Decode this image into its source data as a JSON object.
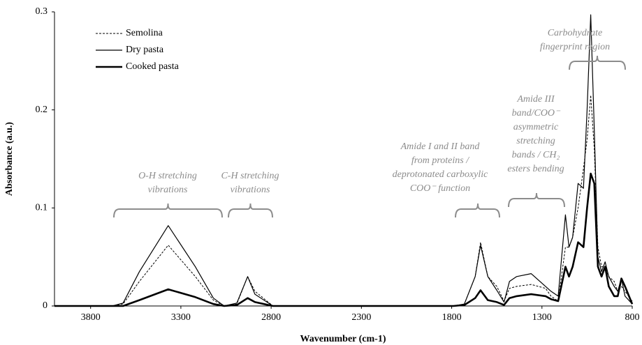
{
  "chart_data": {
    "type": "line",
    "x_label": "Wavenumber (cm-1)",
    "y_label": "Absorbance (a.u.)",
    "xlim": [
      4000,
      800
    ],
    "xticks": [
      3800,
      3300,
      2800,
      2300,
      1800,
      1300,
      800
    ],
    "ylim": [
      0,
      0.3
    ],
    "yticks": [
      0,
      0.1,
      0.2,
      0.3
    ],
    "grid": false,
    "legend": "upper-left",
    "x": [
      4000,
      3680,
      3620,
      3530,
      3370,
      3220,
      3120,
      3060,
      2990,
      2930,
      2890,
      2790,
      2440,
      1980,
      1790,
      1730,
      1670,
      1640,
      1600,
      1550,
      1510,
      1480,
      1440,
      1360,
      1280,
      1250,
      1210,
      1170,
      1150,
      1130,
      1100,
      1070,
      1050,
      1030,
      1010,
      990,
      970,
      950,
      930,
      900,
      880,
      860,
      840,
      800
    ],
    "series": [
      {
        "name": "Semolina",
        "color": "#000000",
        "style": "dashed",
        "width": 1,
        "values": [
          0,
          0,
          0.002,
          0.025,
          0.062,
          0.03,
          0.006,
          0,
          0.002,
          0.03,
          0.015,
          0,
          0,
          0,
          0,
          0.002,
          0.03,
          0.065,
          0.03,
          0.02,
          0.005,
          0.018,
          0.02,
          0.022,
          0.018,
          0.01,
          0.005,
          0.06,
          0.06,
          0.07,
          0.1,
          0.14,
          0.17,
          0.215,
          0.16,
          0.06,
          0.04,
          0.04,
          0.03,
          0.025,
          0.015,
          0.02,
          0.015,
          0.005
        ]
      },
      {
        "name": "Dry pasta",
        "color": "#000000",
        "style": "solid",
        "width": 1.2,
        "values": [
          0,
          0,
          0.003,
          0.035,
          0.082,
          0.04,
          0.008,
          0,
          0.003,
          0.03,
          0.012,
          0,
          0,
          0,
          0,
          0.002,
          0.03,
          0.062,
          0.03,
          0.016,
          0.004,
          0.025,
          0.03,
          0.033,
          0.02,
          0.015,
          0.01,
          0.093,
          0.06,
          0.07,
          0.125,
          0.12,
          0.2,
          0.297,
          0.18,
          0.05,
          0.035,
          0.045,
          0.03,
          0.02,
          0.015,
          0.028,
          0.01,
          0.002
        ]
      },
      {
        "name": "Cooked pasta",
        "color": "#000000",
        "style": "solid",
        "width": 2.6,
        "values": [
          0,
          0,
          0,
          0.006,
          0.017,
          0.009,
          0.002,
          0,
          0.001,
          0.008,
          0.004,
          0,
          0,
          0,
          0,
          0.001,
          0.008,
          0.016,
          0.006,
          0.004,
          0.001,
          0.008,
          0.01,
          0.012,
          0.01,
          0.007,
          0.005,
          0.04,
          0.03,
          0.04,
          0.065,
          0.06,
          0.1,
          0.135,
          0.125,
          0.04,
          0.03,
          0.04,
          0.02,
          0.01,
          0.01,
          0.028,
          0.02,
          0.002
        ]
      }
    ],
    "annotations": [
      [
        "O-H stretching",
        "vibrations"
      ],
      [
        "C-H stretching",
        "vibrations"
      ],
      [
        "Amide I and II band",
        "from proteins /",
        "deprotonated carboxylic",
        "COO⁻ function"
      ],
      [
        "Amide III",
        "band/COO⁻",
        "asymmetric",
        "stretching",
        "bands / CH₂",
        "esters bending"
      ],
      [
        "Carbohydrate",
        "fingerprint region"
      ]
    ]
  }
}
